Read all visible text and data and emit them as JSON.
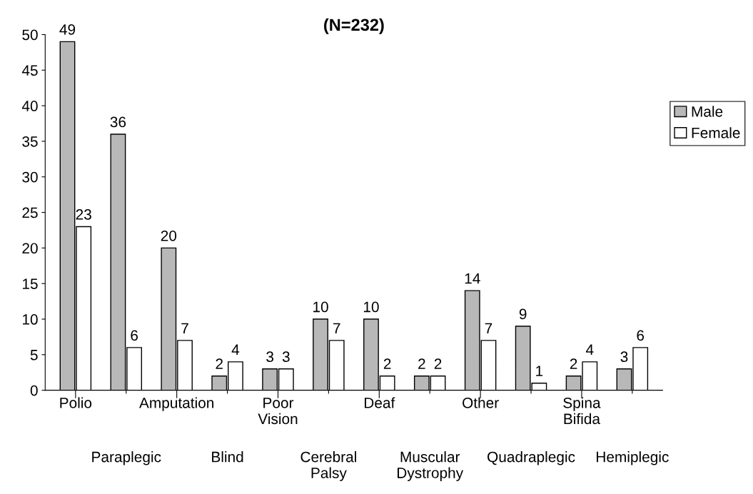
{
  "chart_data": {
    "type": "bar",
    "title": "(N=232)",
    "categories": [
      "Polio",
      "Paraplegic",
      "Amputation",
      "Blind",
      "Poor Vision",
      "Cerebral Palsy",
      "Deaf",
      "Muscular Dystrophy",
      "Other",
      "Quadraplegic",
      "Spina Bifida",
      "Hemiplegic"
    ],
    "series": [
      {
        "name": "Male",
        "color": "#b8b8b8",
        "values": [
          49,
          36,
          20,
          2,
          3,
          10,
          10,
          2,
          14,
          9,
          2,
          3
        ]
      },
      {
        "name": "Female",
        "color": "#ffffff",
        "values": [
          23,
          6,
          7,
          4,
          3,
          7,
          2,
          2,
          7,
          1,
          4,
          6
        ]
      }
    ],
    "ylim": [
      0,
      50
    ],
    "yticks": [
      0,
      5,
      10,
      15,
      20,
      25,
      30,
      35,
      40,
      45,
      50
    ],
    "data_labels": true,
    "legend": "right",
    "grid": false
  }
}
